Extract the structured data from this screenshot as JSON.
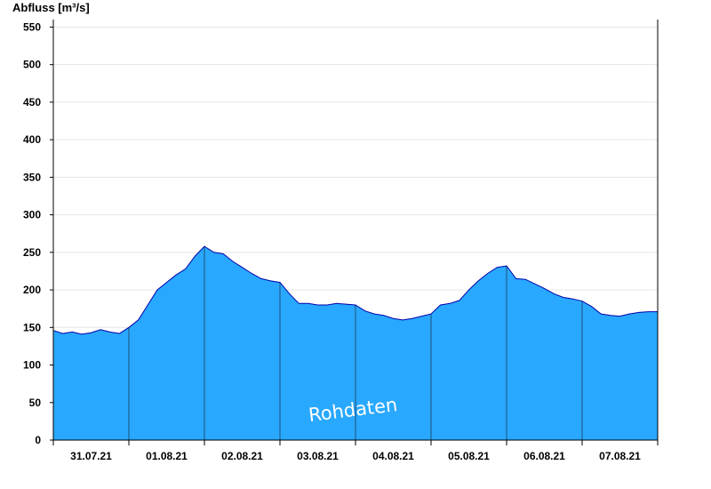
{
  "chart_data": {
    "type": "area",
    "ylabel": "Abfluss [m³/s]",
    "ylim": [
      0,
      560
    ],
    "yticks": [
      0,
      50,
      100,
      150,
      200,
      250,
      300,
      350,
      400,
      450,
      500,
      550
    ],
    "x_tick_labels": [
      "31.07.21",
      "01.08.21",
      "02.08.21",
      "03.08.21",
      "04.08.21",
      "05.08.21",
      "06.08.21",
      "07.08.21"
    ],
    "grid": true,
    "watermark": "Rohdaten",
    "colors": {
      "fill": "#29A8FF",
      "line": "#0000AA",
      "day_separator": "#1B4F7A"
    },
    "series": [
      {
        "x": [
          "31.07.21 00:00",
          "31.07.21 03:00",
          "31.07.21 06:00",
          "31.07.21 09:00",
          "31.07.21 12:00",
          "31.07.21 15:00",
          "31.07.21 18:00",
          "31.07.21 21:00",
          "01.08.21 00:00",
          "01.08.21 03:00",
          "01.08.21 06:00",
          "01.08.21 09:00",
          "01.08.21 12:00",
          "01.08.21 15:00",
          "01.08.21 18:00",
          "01.08.21 21:00",
          "02.08.21 00:00",
          "02.08.21 03:00",
          "02.08.21 06:00",
          "02.08.21 09:00",
          "02.08.21 12:00",
          "02.08.21 15:00",
          "02.08.21 18:00",
          "02.08.21 21:00",
          "03.08.21 00:00",
          "03.08.21 03:00",
          "03.08.21 06:00",
          "03.08.21 09:00",
          "03.08.21 12:00",
          "03.08.21 15:00",
          "03.08.21 18:00",
          "03.08.21 21:00",
          "04.08.21 00:00",
          "04.08.21 03:00",
          "04.08.21 06:00",
          "04.08.21 09:00",
          "04.08.21 12:00",
          "04.08.21 15:00",
          "04.08.21 18:00",
          "04.08.21 21:00",
          "05.08.21 00:00",
          "05.08.21 03:00",
          "05.08.21 06:00",
          "05.08.21 09:00",
          "05.08.21 12:00",
          "05.08.21 15:00",
          "05.08.21 18:00",
          "05.08.21 21:00",
          "06.08.21 00:00",
          "06.08.21 03:00",
          "06.08.21 06:00",
          "06.08.21 09:00",
          "06.08.21 12:00",
          "06.08.21 15:00",
          "06.08.21 18:00",
          "06.08.21 21:00",
          "07.08.21 00:00",
          "07.08.21 03:00",
          "07.08.21 06:00",
          "07.08.21 09:00",
          "07.08.21 12:00",
          "07.08.21 15:00",
          "07.08.21 18:00",
          "07.08.21 21:00",
          "08.08.21 00:00"
        ],
        "values": [
          146,
          142,
          144,
          141,
          143,
          147,
          144,
          142,
          150,
          160,
          180,
          200,
          210,
          220,
          228,
          245,
          258,
          250,
          248,
          238,
          230,
          222,
          215,
          212,
          210,
          195,
          182,
          182,
          180,
          180,
          182,
          181,
          180,
          172,
          168,
          166,
          162,
          160,
          162,
          165,
          168,
          180,
          182,
          186,
          200,
          212,
          222,
          230,
          232,
          215,
          214,
          208,
          202,
          195,
          190,
          188,
          185,
          178,
          168,
          166,
          165,
          168,
          170,
          171,
          171
        ]
      }
    ]
  }
}
